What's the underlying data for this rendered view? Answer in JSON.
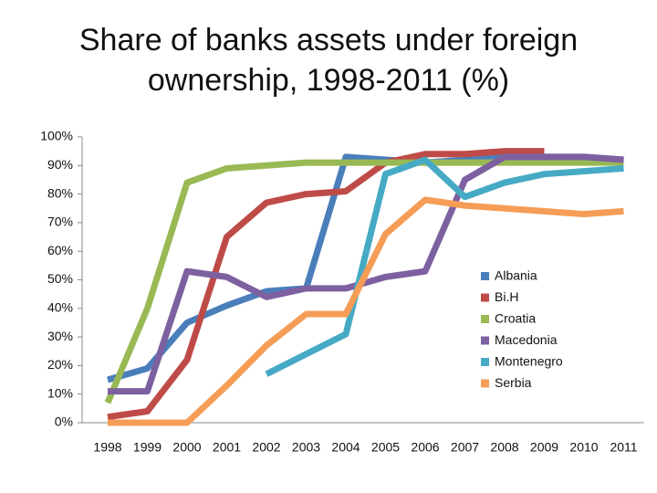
{
  "chart_data": {
    "type": "line",
    "title": "Share of banks assets under foreign ownership, 1998-2011 (%)",
    "categories": [
      "1998",
      "1999",
      "2000",
      "2001",
      "2002",
      "2003",
      "2004",
      "2005",
      "2006",
      "2007",
      "2008",
      "2009",
      "2010",
      "2011"
    ],
    "series": [
      {
        "name": "Albania",
        "color": "#4a7ebb",
        "values": [
          15,
          19,
          35,
          41,
          46,
          47,
          93,
          92,
          91,
          92,
          93,
          93,
          93,
          92
        ]
      },
      {
        "name": "Bi.H",
        "color": "#be4b48",
        "values": [
          2,
          4,
          22,
          65,
          77,
          80,
          81,
          91,
          94,
          94,
          95,
          95,
          null,
          null
        ]
      },
      {
        "name": "Croatia",
        "color": "#98b954",
        "values": [
          7,
          40,
          84,
          89,
          90,
          91,
          91,
          91,
          91,
          91,
          91,
          91,
          91,
          91
        ]
      },
      {
        "name": "Macedonia",
        "color": "#7d60a0",
        "values": [
          11,
          11,
          53,
          51,
          44,
          47,
          47,
          51,
          53,
          85,
          93,
          93,
          93,
          92
        ]
      },
      {
        "name": "Montenegro",
        "color": "#46aac5",
        "values": [
          null,
          null,
          null,
          null,
          17,
          24,
          31,
          87,
          92,
          79,
          84,
          87,
          88,
          89
        ]
      },
      {
        "name": "Serbia",
        "color": "#f59d56",
        "values": [
          0,
          0,
          0,
          13,
          27,
          38,
          38,
          66,
          78,
          76,
          75,
          74,
          73,
          74
        ]
      }
    ],
    "ylim": [
      0,
      100
    ],
    "yticks": [
      {
        "value": 0,
        "label": "0%"
      },
      {
        "value": 10,
        "label": "10%"
      },
      {
        "value": 20,
        "label": "20%"
      },
      {
        "value": 30,
        "label": "30%"
      },
      {
        "value": 40,
        "label": "40%"
      },
      {
        "value": 50,
        "label": "50%"
      },
      {
        "value": 60,
        "label": "60%"
      },
      {
        "value": 70,
        "label": "70%"
      },
      {
        "value": 80,
        "label": "80%"
      },
      {
        "value": 90,
        "label": "90%"
      },
      {
        "value": 100,
        "label": "100%"
      }
    ],
    "legend": "right",
    "grid": false
  }
}
